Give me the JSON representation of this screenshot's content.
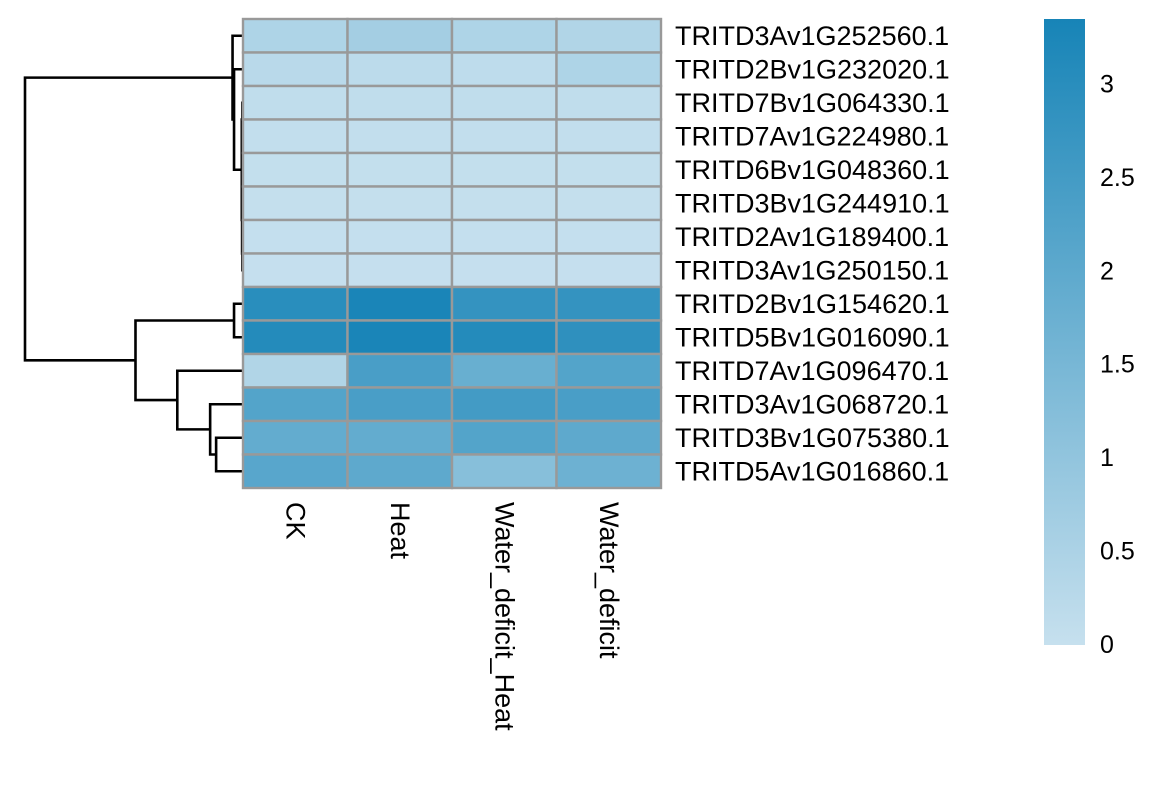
{
  "chart_data": {
    "type": "heatmap",
    "title": "",
    "xlabel": "",
    "ylabel": "",
    "columns": [
      "CK",
      "Heat",
      "Water_deficit_Heat",
      "Water_deficit"
    ],
    "rows": [
      "TRITD3Av1G252560.1",
      "TRITD2Bv1G232020.1",
      "TRITD7Bv1G064330.1",
      "TRITD7Av1G224980.1",
      "TRITD6Bv1G048360.1",
      "TRITD3Bv1G244910.1",
      "TRITD2Av1G189400.1",
      "TRITD3Av1G250150.1",
      "TRITD2Bv1G154620.1",
      "TRITD5Bv1G016090.1",
      "TRITD7Av1G096470.1",
      "TRITD3Av1G068720.1",
      "TRITD3Bv1G075380.1",
      "TRITD5Av1G016860.1"
    ],
    "values": [
      [
        0.45,
        0.65,
        0.45,
        0.4
      ],
      [
        0.25,
        0.2,
        0.15,
        0.45
      ],
      [
        0.12,
        0.12,
        0.12,
        0.12
      ],
      [
        0.08,
        0.08,
        0.08,
        0.08
      ],
      [
        0.05,
        0.05,
        0.05,
        0.05
      ],
      [
        0.04,
        0.04,
        0.04,
        0.04
      ],
      [
        0.03,
        0.03,
        0.03,
        0.03
      ],
      [
        0.02,
        0.02,
        0.02,
        0.02
      ],
      [
        3.0,
        3.3,
        2.8,
        2.8
      ],
      [
        3.1,
        3.3,
        3.1,
        2.9
      ],
      [
        0.4,
        2.4,
        1.8,
        2.2
      ],
      [
        2.2,
        2.4,
        2.5,
        2.4
      ],
      [
        1.9,
        1.9,
        2.2,
        2.0
      ],
      [
        2.1,
        2.0,
        1.2,
        1.7
      ]
    ],
    "colorbar": {
      "min": 0,
      "max": 3.35,
      "ticks": [
        0,
        0.5,
        1,
        1.5,
        2,
        2.5,
        3
      ],
      "tick_labels": [
        "0",
        "0.5",
        "1",
        "1.5",
        "2",
        "2.5",
        "3"
      ],
      "low_color": "#c6e0ee",
      "high_color": "#1784b7"
    },
    "row_dendrogram": {
      "merges": [
        [
          -3,
          -4
        ],
        [
          -5,
          -6
        ],
        [
          -7,
          -8
        ],
        [
          2,
          3
        ],
        [
          1,
          4
        ],
        [
          -2,
          5
        ],
        [
          -1,
          6
        ],
        [
          -9,
          -10
        ],
        [
          -13,
          -14
        ],
        [
          -12,
          9
        ],
        [
          -11,
          10
        ],
        [
          8,
          11
        ],
        [
          7,
          12
        ]
      ],
      "heights": [
        0.02,
        0.02,
        0.02,
        0.03,
        0.04,
        0.3,
        0.35,
        0.3,
        0.9,
        1.1,
        2.2,
        3.6,
        7.3
      ]
    },
    "legend_position": "right"
  }
}
